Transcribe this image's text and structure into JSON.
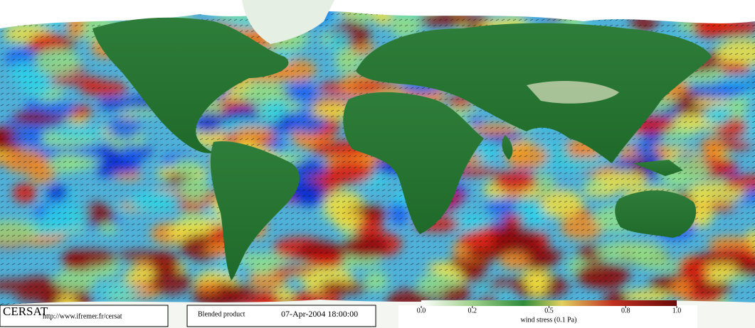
{
  "header": {
    "logo": "CERSAT",
    "url": "http://www.ifremer.fr/cersat"
  },
  "product": {
    "name": "Blended product",
    "date": "07-Apr-2004 18:00:00"
  },
  "colorbar": {
    "label": "wind stress (0.1 Pa)",
    "xlim": [
      0,
      1
    ],
    "ticks": [
      {
        "value": 0,
        "label": "0.0"
      },
      0.2,
      0.5,
      0.8,
      {
        "value": 1,
        "label": "1.0"
      }
    ]
  }
}
